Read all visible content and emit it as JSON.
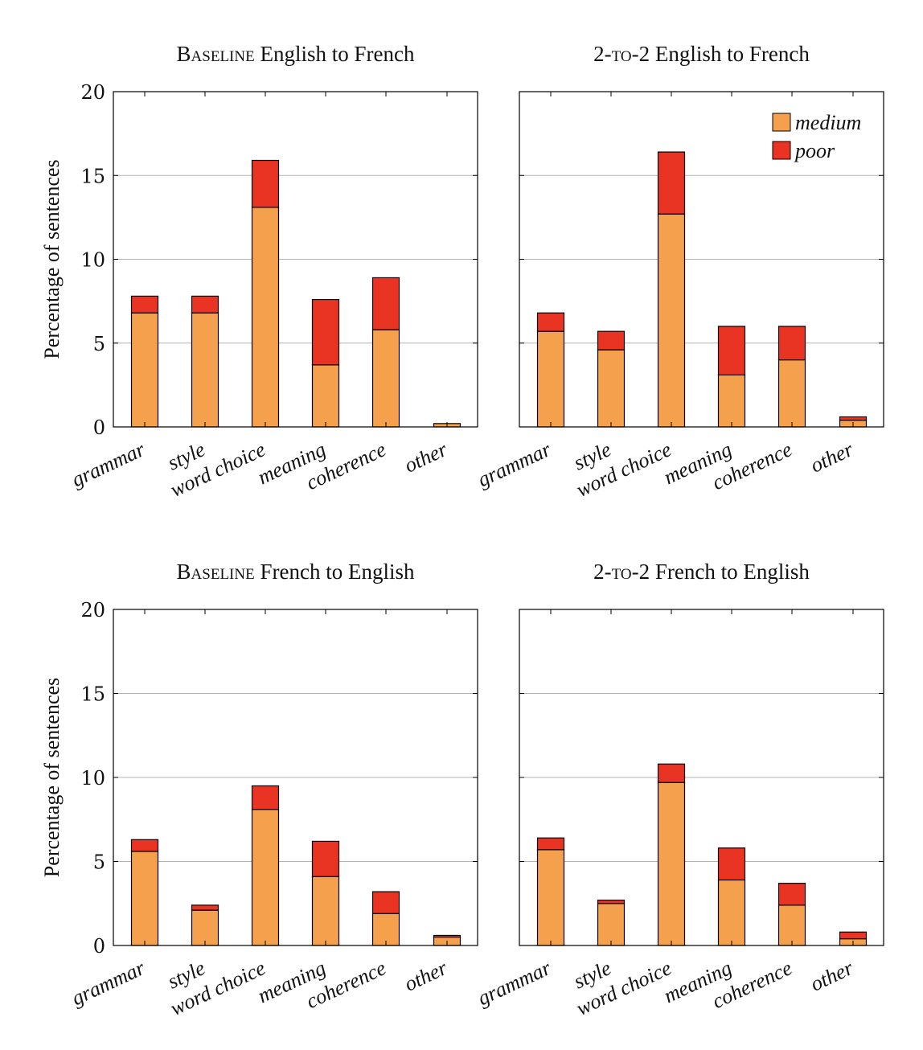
{
  "figure": {
    "y_axis_label": "Percentage of sentences",
    "legend": [
      {
        "label": "medium",
        "color": "#f4a04d"
      },
      {
        "label": "poor",
        "color": "#e93323"
      }
    ]
  },
  "chart_data": [
    {
      "type": "bar",
      "stacked": true,
      "title_prefix": "Baseline",
      "title_rest": " English to French",
      "categories": [
        "grammar",
        "style",
        "word choice",
        "meaning",
        "coherence",
        "other"
      ],
      "series": [
        {
          "name": "medium",
          "values": [
            6.8,
            6.8,
            13.1,
            3.7,
            5.8,
            0.2
          ]
        },
        {
          "name": "poor",
          "values": [
            1.0,
            1.0,
            2.8,
            3.9,
            3.1,
            0.0
          ]
        }
      ],
      "ylabel": "Percentage of sentences",
      "ylim": [
        0,
        20
      ],
      "yticks": [
        0,
        5,
        10,
        15,
        20
      ],
      "grid": "horizontal",
      "legend": false
    },
    {
      "type": "bar",
      "stacked": true,
      "title_prefix": "2-to-2",
      "title_rest": " English to French",
      "categories": [
        "grammar",
        "style",
        "word choice",
        "meaning",
        "coherence",
        "other"
      ],
      "series": [
        {
          "name": "medium",
          "values": [
            5.7,
            4.6,
            12.7,
            3.1,
            4.0,
            0.4
          ]
        },
        {
          "name": "poor",
          "values": [
            1.1,
            1.1,
            3.7,
            2.9,
            2.0,
            0.2
          ]
        }
      ],
      "ylabel": "",
      "ylim": [
        0,
        20
      ],
      "yticks": [
        0,
        5,
        10,
        15,
        20
      ],
      "grid": "horizontal",
      "legend": "top-right"
    },
    {
      "type": "bar",
      "stacked": true,
      "title_prefix": "Baseline",
      "title_rest": " French to English",
      "categories": [
        "grammar",
        "style",
        "word choice",
        "meaning",
        "coherence",
        "other"
      ],
      "series": [
        {
          "name": "medium",
          "values": [
            5.6,
            2.1,
            8.1,
            4.1,
            1.9,
            0.5
          ]
        },
        {
          "name": "poor",
          "values": [
            0.7,
            0.3,
            1.4,
            2.1,
            1.3,
            0.1
          ]
        }
      ],
      "ylabel": "Percentage of sentences",
      "ylim": [
        0,
        20
      ],
      "yticks": [
        0,
        5,
        10,
        15,
        20
      ],
      "grid": "horizontal",
      "legend": false
    },
    {
      "type": "bar",
      "stacked": true,
      "title_prefix": "2-to-2",
      "title_rest": " French to English",
      "categories": [
        "grammar",
        "style",
        "word choice",
        "meaning",
        "coherence",
        "other"
      ],
      "series": [
        {
          "name": "medium",
          "values": [
            5.7,
            2.5,
            9.7,
            3.9,
            2.4,
            0.4
          ]
        },
        {
          "name": "poor",
          "values": [
            0.7,
            0.2,
            1.1,
            1.9,
            1.3,
            0.4
          ]
        }
      ],
      "ylabel": "",
      "ylim": [
        0,
        20
      ],
      "yticks": [
        0,
        5,
        10,
        15,
        20
      ],
      "grid": "horizontal",
      "legend": false
    }
  ]
}
